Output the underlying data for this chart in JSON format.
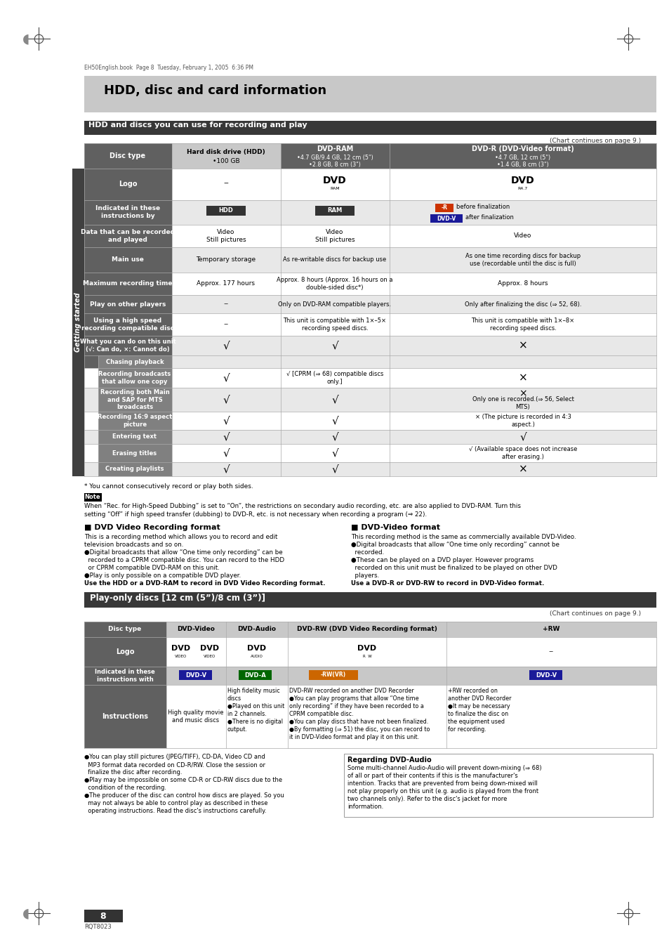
{
  "page_bg": "#ffffff",
  "header_bg": "#c8c8c8",
  "header_text": "HDD, disc and card information",
  "section1_text": "HDD and discs you can use for recording and play",
  "section2_text": "Play-only discs [12 cm (5”)/8 cm (3”)]",
  "file_info": "EH50English.book  Page 8  Tuesday, February 1, 2005  6:36 PM",
  "page_number": "8",
  "model_number": "RQT8023",
  "footnote": "* You cannot consecutively record or play both sides.",
  "note_content": "When “Rec. for High-Speed Dubbing” is set to “On”, the restrictions on secondary audio recording, etc. are also applied to DVD-RAM. Turn this\nsetting “Off” if high speed transfer (dubbing) to DVD-R, etc. is not necessary when recording a program (⇒ 22).",
  "chart_note": "(Chart continues on page 9.)"
}
